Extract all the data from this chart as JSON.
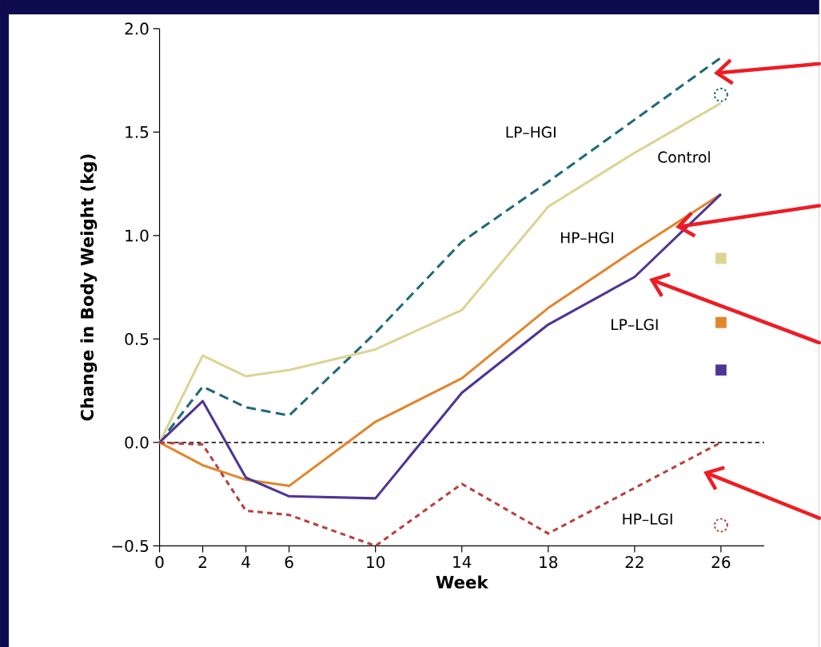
{
  "chart_data": {
    "type": "line",
    "xlabel": "Week",
    "ylabel": "Change in Body Weight (kg)",
    "x": [
      0,
      2,
      4,
      6,
      10,
      14,
      18,
      22,
      26
    ],
    "xlim": [
      0,
      28
    ],
    "xticks": [
      0,
      2,
      4,
      6,
      10,
      14,
      18,
      22,
      26
    ],
    "ylim": [
      -0.5,
      2.0
    ],
    "yticks": [
      {
        "value": -0.5,
        "label": "−0.5"
      },
      {
        "value": 0,
        "label": "0.0"
      },
      0.5,
      {
        "value": 1.0,
        "label": "1.0"
      },
      1.5,
      {
        "value": 2.0,
        "label": "2.0"
      }
    ],
    "grid": false,
    "legend": false,
    "ref_lines": [
      {
        "axis": "y",
        "value": 0,
        "color": "#000000",
        "line_style": "dashed"
      }
    ],
    "series": [
      {
        "name": "LP–HGI",
        "color": "#1f6a78",
        "line_style": "dashed",
        "values": [
          0,
          0.27,
          0.17,
          0.13,
          0.53,
          0.97,
          1.26,
          1.56,
          1.86
        ]
      },
      {
        "name": "Control",
        "color": "#dcd493",
        "line_style": "solid",
        "values": [
          0,
          0.42,
          0.32,
          0.35,
          0.45,
          0.64,
          1.14,
          1.4,
          1.64
        ]
      },
      {
        "name": "HP–HGI",
        "color": "#e2852c",
        "line_style": "solid",
        "values": [
          0,
          -0.11,
          -0.18,
          -0.21,
          0.1,
          0.31,
          0.65,
          0.93,
          1.2
        ]
      },
      {
        "name": "LP–LGI",
        "color": "#4e3495",
        "line_style": "solid",
        "values": [
          0,
          0.2,
          -0.17,
          -0.26,
          -0.27,
          0.24,
          0.57,
          0.8,
          1.2
        ]
      },
      {
        "name": "HP–LGI",
        "color": "#b8403e",
        "line_style": "dotted",
        "values": [
          0,
          -0.01,
          -0.33,
          -0.35,
          -0.5,
          -0.2,
          -0.44,
          -0.22,
          0.0
        ]
      },
      {
        "type": "scatter",
        "marker": "square",
        "color": "#dcd493",
        "values": [
          null,
          null,
          null,
          null,
          null,
          null,
          null,
          null,
          0.89
        ]
      },
      {
        "type": "scatter",
        "marker": "square",
        "color": "#e2852c",
        "values": [
          null,
          null,
          null,
          null,
          null,
          null,
          null,
          null,
          0.58
        ]
      },
      {
        "type": "scatter",
        "marker": "square",
        "color": "#4e3495",
        "values": [
          null,
          null,
          null,
          null,
          null,
          null,
          null,
          null,
          0.35
        ]
      },
      {
        "type": "scatter",
        "marker": "circle",
        "color": "#1f6a78",
        "values": [
          null,
          null,
          null,
          null,
          null,
          null,
          null,
          null,
          1.68
        ]
      },
      {
        "type": "scatter",
        "marker": "circle",
        "color": "#b8403e",
        "values": [
          null,
          null,
          null,
          null,
          null,
          null,
          null,
          null,
          -0.4
        ]
      }
    ]
  }
}
